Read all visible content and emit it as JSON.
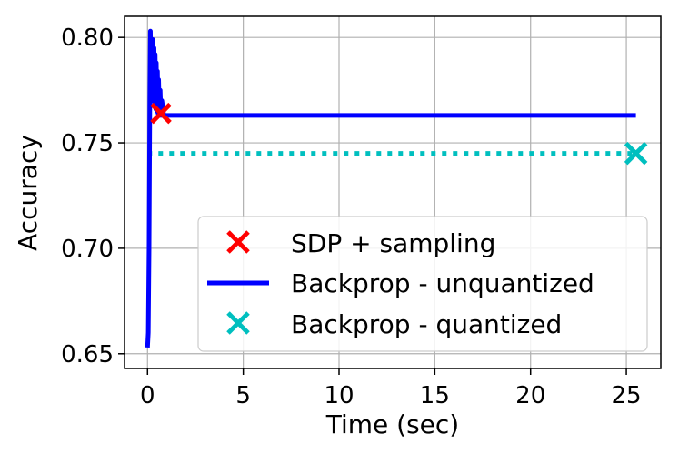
{
  "chart_data": {
    "type": "line",
    "xlabel": "Time (sec)",
    "ylabel": "Accuracy",
    "xlim": [
      -1.2,
      26.8
    ],
    "ylim": [
      0.643,
      0.81
    ],
    "xticks": [
      0,
      5,
      10,
      15,
      20,
      25
    ],
    "yticks": [
      0.65,
      0.7,
      0.75,
      0.8
    ],
    "xtick_labels": [
      "0",
      "5",
      "10",
      "15",
      "20",
      "25"
    ],
    "ytick_labels": [
      "0.65",
      "0.70",
      "0.75",
      "0.80"
    ],
    "grid": true,
    "legend_position": "bottom-right",
    "series": [
      {
        "name": "SDP + sampling",
        "kind": "marker",
        "marker": "x",
        "color": "#ff0000",
        "x": [
          0.7
        ],
        "y": [
          0.764
        ]
      },
      {
        "name": "Backprop - unquantized",
        "kind": "line",
        "style": "solid",
        "color": "#0000ff",
        "x": [
          0.0,
          0.04,
          0.08,
          0.12,
          0.15,
          0.19,
          0.22,
          0.25,
          0.28,
          0.31,
          0.34,
          0.37,
          0.4,
          0.43,
          0.46,
          0.49,
          0.52,
          0.55,
          0.58,
          0.62,
          0.66,
          0.7,
          0.75,
          0.85,
          1.0,
          3.0,
          6.0,
          10.0,
          15.0,
          20.0,
          25.5
        ],
        "y": [
          0.653,
          0.66,
          0.7,
          0.77,
          0.803,
          0.78,
          0.798,
          0.77,
          0.799,
          0.772,
          0.795,
          0.768,
          0.792,
          0.766,
          0.788,
          0.765,
          0.784,
          0.764,
          0.78,
          0.764,
          0.775,
          0.763,
          0.77,
          0.763,
          0.763,
          0.763,
          0.763,
          0.763,
          0.763,
          0.763,
          0.763
        ]
      },
      {
        "name": "Backprop - quantized",
        "kind": "line+marker",
        "style": "dotted",
        "marker": "x",
        "color": "#00bfbf",
        "x": [
          0.0,
          25.5
        ],
        "y": [
          0.745,
          0.745
        ],
        "marker_x": [
          25.5
        ],
        "marker_y": [
          0.745
        ]
      }
    ]
  }
}
